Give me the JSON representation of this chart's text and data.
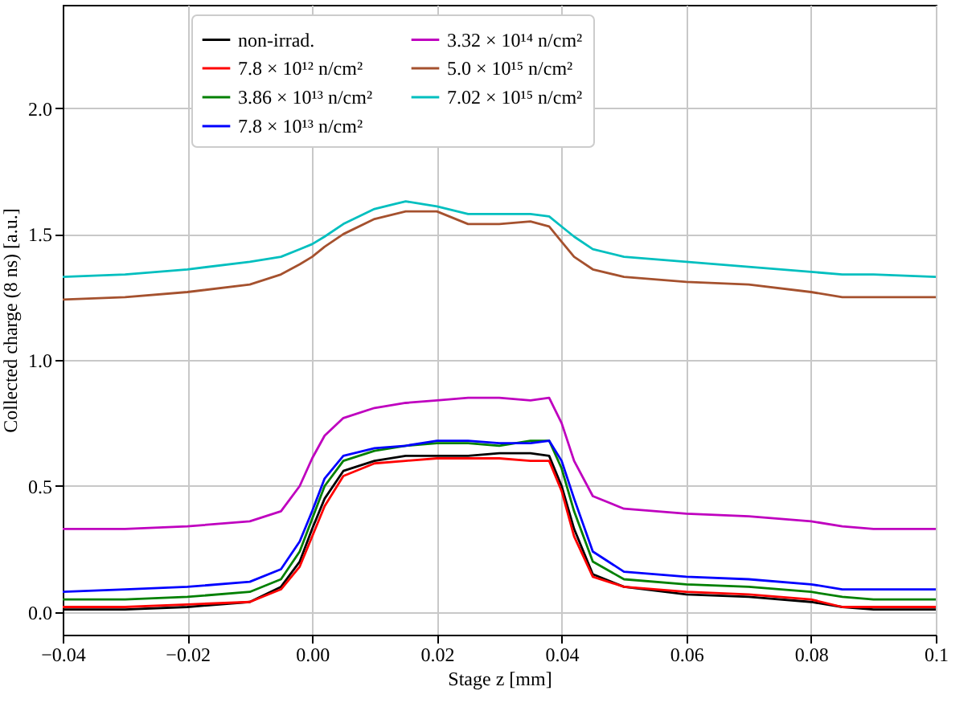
{
  "chart_data": {
    "type": "line",
    "xlabel": "Stage z [mm]",
    "ylabel": "Collected charge (8 ns) [a.u.]",
    "x": [
      -0.04,
      -0.03,
      -0.02,
      -0.01,
      -0.005,
      -0.002,
      0,
      0.002,
      0.005,
      0.01,
      0.015,
      0.02,
      0.025,
      0.03,
      0.035,
      0.038,
      0.04,
      0.042,
      0.045,
      0.05,
      0.06,
      0.07,
      0.08,
      0.085,
      0.09,
      0.1
    ],
    "series": [
      {
        "name": "non-irrad.",
        "color": "#000000",
        "values": [
          0.01,
          0.01,
          0.02,
          0.04,
          0.1,
          0.2,
          0.33,
          0.45,
          0.56,
          0.6,
          0.62,
          0.62,
          0.62,
          0.63,
          0.63,
          0.62,
          0.5,
          0.33,
          0.15,
          0.1,
          0.07,
          0.06,
          0.04,
          0.02,
          0.01,
          0.01
        ]
      },
      {
        "name": "7.8 × 10¹² n/cm²",
        "color": "#ff0000",
        "values": [
          0.02,
          0.02,
          0.03,
          0.04,
          0.09,
          0.18,
          0.3,
          0.42,
          0.54,
          0.59,
          0.6,
          0.61,
          0.61,
          0.61,
          0.6,
          0.6,
          0.48,
          0.3,
          0.14,
          0.1,
          0.08,
          0.07,
          0.05,
          0.02,
          0.02,
          0.02
        ]
      },
      {
        "name": "3.86 × 10¹³ n/cm²",
        "color": "#008000",
        "values": [
          0.05,
          0.05,
          0.06,
          0.08,
          0.13,
          0.24,
          0.37,
          0.5,
          0.6,
          0.64,
          0.66,
          0.67,
          0.67,
          0.66,
          0.68,
          0.68,
          0.57,
          0.4,
          0.2,
          0.13,
          0.11,
          0.1,
          0.08,
          0.06,
          0.05,
          0.05
        ]
      },
      {
        "name": "7.8 × 10¹³ n/cm²",
        "color": "#0000ff",
        "values": [
          0.08,
          0.09,
          0.1,
          0.12,
          0.17,
          0.28,
          0.4,
          0.53,
          0.62,
          0.65,
          0.66,
          0.68,
          0.68,
          0.67,
          0.67,
          0.68,
          0.6,
          0.45,
          0.24,
          0.16,
          0.14,
          0.13,
          0.11,
          0.09,
          0.09,
          0.09
        ]
      },
      {
        "name": "3.32 × 10¹⁴ n/cm²",
        "color": "#bf00bf",
        "values": [
          0.33,
          0.33,
          0.34,
          0.36,
          0.4,
          0.5,
          0.61,
          0.7,
          0.77,
          0.81,
          0.83,
          0.84,
          0.85,
          0.85,
          0.84,
          0.85,
          0.75,
          0.6,
          0.46,
          0.41,
          0.39,
          0.38,
          0.36,
          0.34,
          0.33,
          0.33
        ]
      },
      {
        "name": "5.0 × 10¹⁵ n/cm²",
        "color": "#a5512e",
        "values": [
          1.24,
          1.25,
          1.27,
          1.3,
          1.34,
          1.38,
          1.41,
          1.45,
          1.5,
          1.56,
          1.59,
          1.59,
          1.54,
          1.54,
          1.55,
          1.53,
          1.47,
          1.41,
          1.36,
          1.33,
          1.31,
          1.3,
          1.27,
          1.25,
          1.25,
          1.25
        ]
      },
      {
        "name": "7.02 × 10¹⁵ n/cm²",
        "color": "#00bfbf",
        "values": [
          1.33,
          1.34,
          1.36,
          1.39,
          1.41,
          1.44,
          1.46,
          1.49,
          1.54,
          1.6,
          1.63,
          1.61,
          1.58,
          1.58,
          1.58,
          1.57,
          1.53,
          1.49,
          1.44,
          1.41,
          1.39,
          1.37,
          1.35,
          1.34,
          1.34,
          1.33
        ]
      }
    ],
    "xlim": [
      -0.04,
      0.1
    ],
    "xticks": [
      {
        "value": -0.04,
        "label": "−0.04"
      },
      {
        "value": -0.02,
        "label": "−0.02"
      },
      {
        "value": 0,
        "label": "0.00"
      },
      0.02,
      0.04,
      0.06,
      0.08,
      {
        "value": 0.1,
        "label": "0.1"
      }
    ],
    "ylim": [
      -0.09,
      2.41
    ],
    "yticks": [
      {
        "value": 0,
        "label": "0.0"
      },
      0.5,
      {
        "value": 1,
        "label": "1.0"
      },
      1.5,
      {
        "value": 2,
        "label": "2.0"
      }
    ],
    "grid": true,
    "legend": "top",
    "marker": "none",
    "line_style": "solid"
  }
}
